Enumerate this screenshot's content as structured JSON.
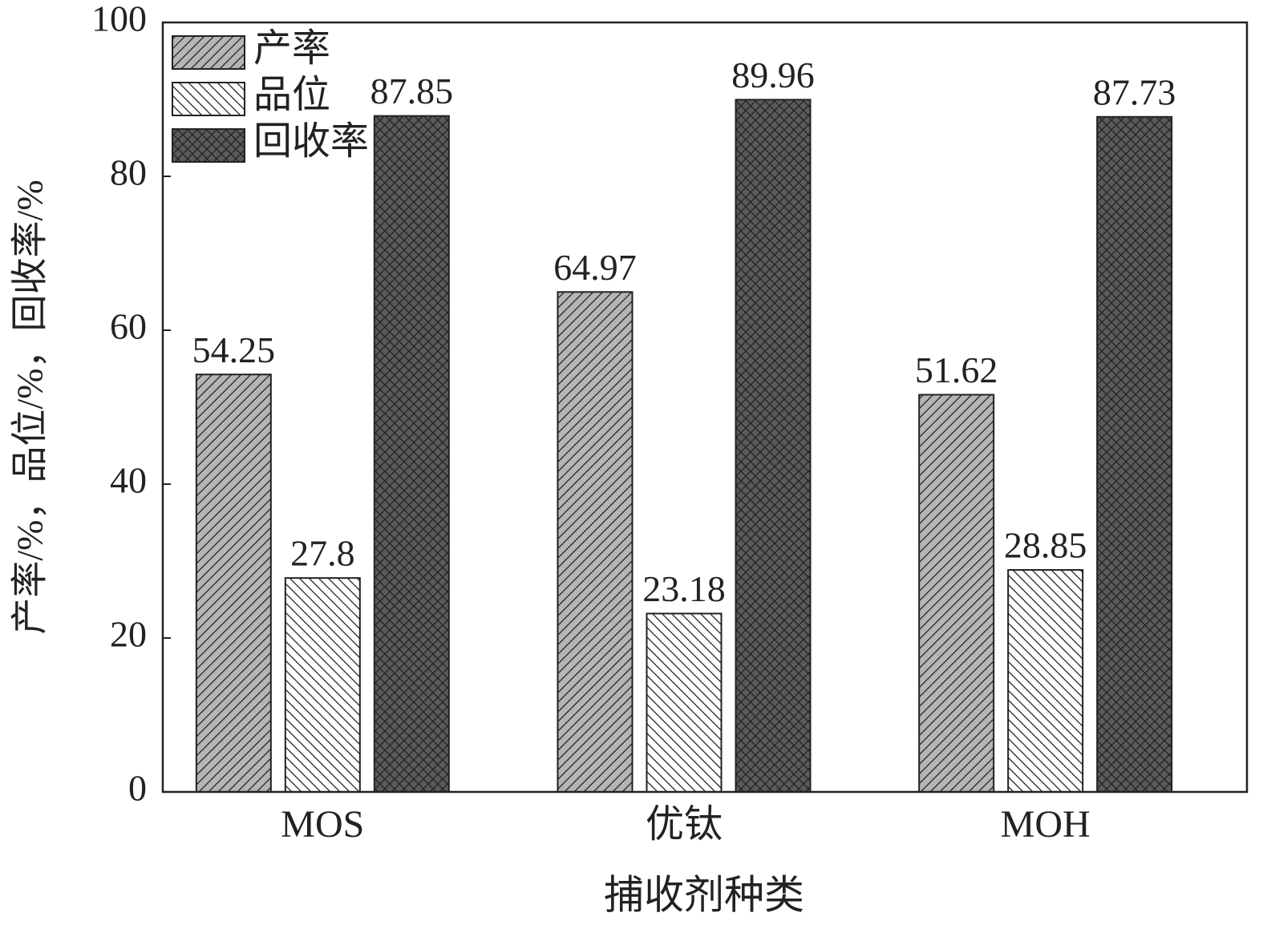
{
  "chart_data": {
    "type": "bar",
    "x_label": "捕收剂种类",
    "y_label": "产率/%，品位/%，回收率/%",
    "categories": [
      "MOS",
      "优钛",
      "MOH"
    ],
    "series": [
      {
        "name": "产率",
        "color": "#b5b5b5",
        "hatch": "/",
        "values": [
          54.25,
          64.97,
          51.62
        ]
      },
      {
        "name": "品位",
        "color": "#ffffff",
        "hatch": "\\",
        "values": [
          27.8,
          23.18,
          28.85
        ]
      },
      {
        "name": "回收率",
        "color": "#5a5a5a",
        "hatch": "x",
        "values": [
          87.85,
          89.96,
          87.73
        ]
      }
    ],
    "ylim": [
      0,
      100
    ],
    "yticks": [
      0,
      20,
      40,
      60,
      80,
      100
    ],
    "legend": "upper-left"
  }
}
